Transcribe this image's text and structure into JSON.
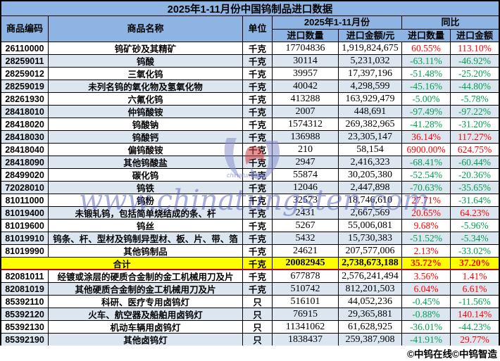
{
  "title": "2025年1-11月份中国钨制品进口数据",
  "header": {
    "code": "商品编码",
    "name": "商品名称",
    "unit": "单位",
    "period_group": "2025年1-11月份",
    "yoy_group": "同比",
    "qty": "进口数量",
    "amount": "进口金额/元",
    "yoy_qty": "进口数量",
    "yoy_amount": "进口金额"
  },
  "colors": {
    "header_blue": "#8DB4E2",
    "alt_row_blue": "#DCE6F1",
    "total_row_yellow": "#FFFF00",
    "positive_red": "#FF0000",
    "negative_green": "#00A050",
    "total_border_red": "#C00000"
  },
  "watermark": {
    "text": "www.chinatungsten.com",
    "caption": "chinatungsten",
    "logo": "tungsten-flower-logo"
  },
  "footer": "©中钨在线©中钨智造",
  "table": {
    "rows": [
      {
        "code": "26110000",
        "name": "钨矿砂及其精矿",
        "unit": "千克",
        "qty": "17704836",
        "amount": "1,919,824,675",
        "yoy_qty": "60.55%",
        "yoy_amount": "113.10%"
      },
      {
        "code": "28259011",
        "name": "钨酸",
        "unit": "千克",
        "qty": "30114",
        "amount": "5,231,032",
        "yoy_qty": "-63.11%",
        "yoy_amount": "-46.92%"
      },
      {
        "code": "28259012",
        "name": "三氧化钨",
        "unit": "千克",
        "qty": "39957",
        "amount": "17,397,196",
        "yoy_qty": "-51.48%",
        "yoy_amount": "-25.20%"
      },
      {
        "code": "28259019",
        "name": "未列名钨的氧化物及氢氧化物",
        "unit": "千克",
        "qty": "40042",
        "amount": "4,298,599",
        "yoy_qty": "-45.16%",
        "yoy_amount": "-44.80%"
      },
      {
        "code": "28261930",
        "name": "六氟化钨",
        "unit": "千克",
        "qty": "413288",
        "amount": "163,929,479",
        "yoy_qty": "-5.00%",
        "yoy_amount": "-5.78%"
      },
      {
        "code": "28418010",
        "name": "仲钨酸铵",
        "unit": "千克",
        "qty": "2007",
        "amount": "448,691",
        "yoy_qty": "-97.49%",
        "yoy_amount": "-97.22%"
      },
      {
        "code": "28418020",
        "name": "钨酸钠",
        "unit": "千克",
        "qty": "1574312",
        "amount": "269,382,965",
        "yoy_qty": "-41.28%",
        "yoy_amount": "-31.20%"
      },
      {
        "code": "28418030",
        "name": "钨酸钙",
        "unit": "千克",
        "qty": "136988",
        "amount": "23,305,147",
        "yoy_qty": "36.14%",
        "yoy_amount": "117.27%"
      },
      {
        "code": "28418040",
        "name": "偏钨酸铵",
        "unit": "千克",
        "qty": "210",
        "amount": "58,154",
        "yoy_qty": "6900.00%",
        "yoy_amount": "624.75%"
      },
      {
        "code": "28418090",
        "name": "其他钨酸盐",
        "unit": "千克",
        "qty": "2947",
        "amount": "2,416,323",
        "yoy_qty": "-68.41%",
        "yoy_amount": "-60.44%"
      },
      {
        "code": "28499020",
        "name": "碳化钨",
        "unit": "千克",
        "qty": "55874",
        "amount": "30,205,380",
        "yoy_qty": "-52.54%",
        "yoy_amount": "-20.36%"
      },
      {
        "code": "72028010",
        "name": "钨铁",
        "unit": "千克",
        "qty": "12046",
        "amount": "2,447,898",
        "yoy_qty": "-70.63%",
        "yoy_amount": "-35.65%"
      },
      {
        "code": "81011000",
        "name": "钨粉",
        "unit": "千克",
        "qty": "32573",
        "amount": "18,746,610",
        "yoy_qty": "27.71%",
        "yoy_amount": "-31.64%"
      },
      {
        "code": "81019400",
        "name": "未锻轧钨，包括简单烧结成的条、杆",
        "unit": "千克",
        "qty": "2431",
        "amount": "2,667,569",
        "yoy_qty": "20.65%",
        "yoy_amount": "64.23%"
      },
      {
        "code": "81019600",
        "name": "钨丝",
        "unit": "千克",
        "qty": "5267",
        "amount": "55,006,081",
        "yoy_qty": "9.68%",
        "yoy_amount": "-5.96%"
      },
      {
        "code": "81019910",
        "name": "钨条、杆、型材及钨制异型材、板、片、带、箔",
        "unit": "千克",
        "qty": "5432",
        "amount": "15,730,383",
        "yoy_qty": "-51.52%",
        "yoy_amount": "-5.34%"
      },
      {
        "code": "81019990",
        "name": "其他钨制品",
        "unit": "千克",
        "qty": "24621",
        "amount": "207,577,006",
        "yoy_qty": "2.13%",
        "yoy_amount": "-33.02%"
      },
      {
        "total": true,
        "name": "合计",
        "unit": "千克",
        "qty": "20082945",
        "amount": "2,738,673,188",
        "yoy_qty": "35.72%",
        "yoy_amount": "37.20%"
      },
      {
        "code": "82081011",
        "name": "经镀或涂层的硬质合金制的金工机械用刀及片",
        "unit": "千克",
        "qty": "677878",
        "amount": "2,576,241,494",
        "yoy_qty": "3.56%",
        "yoy_amount": "1.41%"
      },
      {
        "code": "82081019",
        "name": "其他硬质合金制的金工机械用刀及片",
        "unit": "千克",
        "qty": "510742",
        "amount": "812,201,503",
        "yoy_qty": "6.04%",
        "yoy_amount": "6.61%"
      },
      {
        "code": "85392110",
        "name": "科研、医疗专用卤钨灯",
        "unit": "只",
        "qty": "516101",
        "amount": "44,052,236",
        "yoy_qty": "-0.45%",
        "yoy_amount": "-11.56%"
      },
      {
        "code": "85392120",
        "name": "火车、航空器及船舶用卤钨灯",
        "unit": "只",
        "qty": "76915",
        "amount": "29,365,881",
        "yoy_qty": "-0.88%",
        "yoy_amount": "140.14%"
      },
      {
        "code": "85392130",
        "name": "机动车辆用卤钨灯",
        "unit": "只",
        "qty": "11341062",
        "amount": "61,628,925",
        "yoy_qty": "-36.01%",
        "yoy_amount": "-44.23%"
      },
      {
        "code": "85392190",
        "name": "其他卤钨灯",
        "unit": "只",
        "qty": "1838437",
        "amount": "259,387,908",
        "yoy_qty": "-41.91%",
        "yoy_amount": "29.77%"
      }
    ]
  }
}
